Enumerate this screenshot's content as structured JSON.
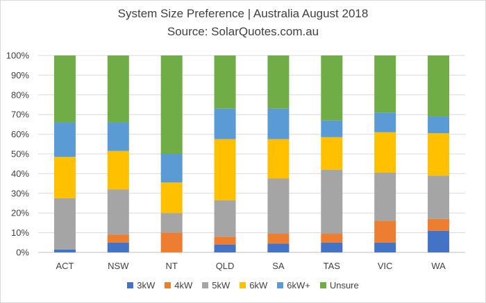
{
  "chart_data": {
    "type": "bar",
    "stacked": true,
    "title": "System Size Preference  | Australia August 2018",
    "subtitle": "Source: SolarQuotes.com.au",
    "categories": [
      "ACT",
      "NSW",
      "NT",
      "QLD",
      "SA",
      "TAS",
      "VIC",
      "WA"
    ],
    "ylim": [
      0,
      100
    ],
    "yticks": [
      "0%",
      "10%",
      "20%",
      "30%",
      "40%",
      "50%",
      "60%",
      "70%",
      "80%",
      "90%",
      "100%"
    ],
    "grid": true,
    "legend": "bottom",
    "series": [
      {
        "name": "3kW",
        "color": "#4472c4",
        "values": [
          1.5,
          5,
          0,
          4,
          4.5,
          5,
          5,
          11
        ]
      },
      {
        "name": "4kW",
        "color": "#ed7d31",
        "values": [
          0,
          4,
          10,
          4,
          5,
          4.5,
          11,
          6
        ]
      },
      {
        "name": "5kW",
        "color": "#a5a5a5",
        "values": [
          26,
          23,
          10,
          18.5,
          28,
          32.5,
          24.5,
          22
        ]
      },
      {
        "name": "6kW",
        "color": "#ffc000",
        "values": [
          21,
          19.5,
          15.5,
          31,
          20,
          16.5,
          20.5,
          21.5
        ]
      },
      {
        "name": "6kW+",
        "color": "#5b9bd5",
        "values": [
          17.5,
          14.5,
          14.5,
          15.5,
          15.5,
          8.5,
          10,
          8.5
        ]
      },
      {
        "name": "Unsure",
        "color": "#70ad47",
        "values": [
          34,
          34,
          50,
          27,
          27,
          33,
          29,
          31
        ]
      }
    ]
  }
}
